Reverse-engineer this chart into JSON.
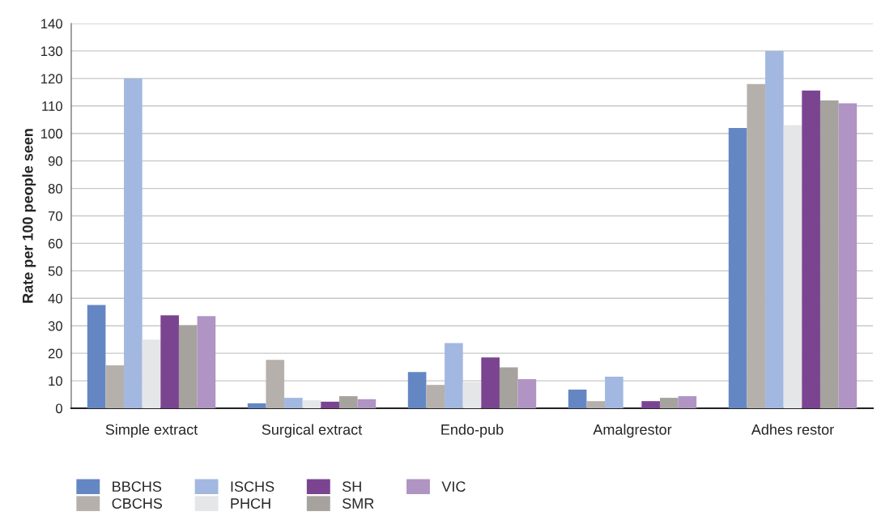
{
  "chart_data": {
    "type": "bar",
    "ylabel": "Rate per 100 people seen",
    "categories": [
      "Simple extract",
      "Surgical extract",
      "Endo-pub",
      "Amalgrestor",
      "Adhes restor"
    ],
    "series": [
      {
        "name": "BBCHS",
        "color": "#6487c4",
        "values": [
          37.6,
          1.8,
          13.2,
          6.8,
          102
        ]
      },
      {
        "name": "CBCHS",
        "color": "#b5b0ab",
        "values": [
          15.6,
          17.6,
          8.5,
          2.6,
          118
        ]
      },
      {
        "name": "ISCHS",
        "color": "#a3b8e0",
        "values": [
          120,
          3.8,
          23.7,
          11.5,
          130
        ]
      },
      {
        "name": "PHCH",
        "color": "#e5e6e8",
        "values": [
          25,
          2.9,
          9.5,
          null,
          103
        ]
      },
      {
        "name": "SH",
        "color": "#7b4490",
        "values": [
          33.8,
          2.4,
          18.5,
          2.6,
          115.6
        ]
      },
      {
        "name": "SMR",
        "color": "#a6a29e",
        "values": [
          30.2,
          4.4,
          14.9,
          3.8,
          112
        ]
      },
      {
        "name": "VIC",
        "color": "#b094c3",
        "values": [
          33.5,
          3.3,
          10.6,
          4.4,
          111
        ]
      }
    ],
    "ylim": [
      0,
      140
    ],
    "yticks": [
      0,
      10,
      20,
      30,
      40,
      50,
      60,
      70,
      80,
      90,
      100,
      110,
      120,
      130,
      140
    ],
    "grid": "y",
    "legend": "bottom"
  }
}
